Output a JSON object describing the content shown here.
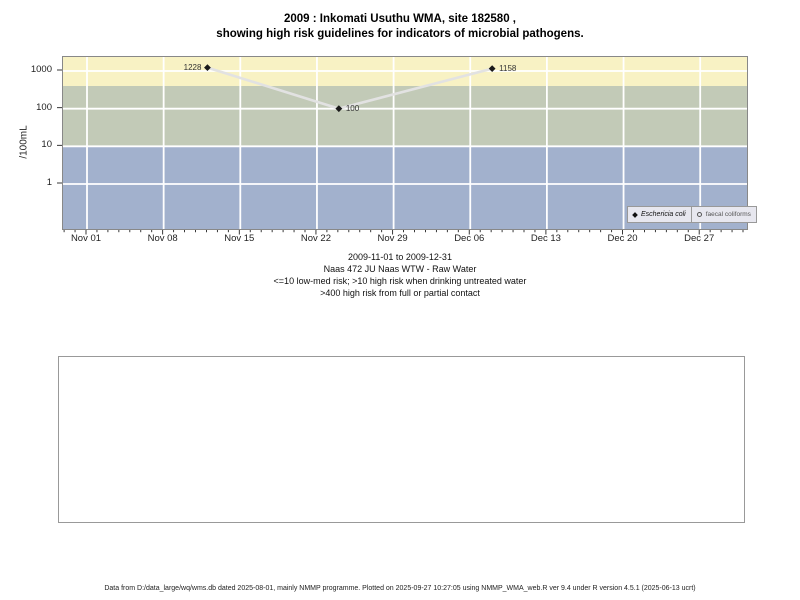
{
  "title": {
    "line1": "2009 : Inkomati Usuthu WMA, site 182580 ,",
    "line2": "showing high risk guidelines for indicators of microbial pathogens."
  },
  "chart_data": {
    "type": "line",
    "title": "2009 : Inkomati Usuthu WMA, site 182580 , showing high risk guidelines for indicators of microbial pathogens.",
    "ylabel": "/100mL",
    "y_scale": "log",
    "y_ticks": [
      1,
      10,
      100,
      1000
    ],
    "ylim": [
      0.06,
      2300
    ],
    "x_range": [
      "2009-11-01",
      "2009-12-31"
    ],
    "x_tick_labels": [
      "Nov 01",
      "Nov 08",
      "Nov 15",
      "Nov 22",
      "Nov 29",
      "Dec 06",
      "Dec 13",
      "Dec 20",
      "Dec 27"
    ],
    "grid": true,
    "legend_position": "bottom-right",
    "series": [
      {
        "name": "Eschericia coli",
        "marker": "filled-diamond",
        "points": [
          {
            "date": "2009-11-12",
            "day_from_nov01": 11,
            "value": 1228,
            "label": "1228"
          },
          {
            "date": "2009-11-24",
            "day_from_nov01": 23,
            "value": 100,
            "label": "100"
          },
          {
            "date": "2009-12-08",
            "day_from_nov01": 37,
            "value": 1158,
            "label": "1158"
          }
        ]
      },
      {
        "name": "faecal coliforms",
        "marker": "open-circle",
        "points": []
      }
    ],
    "risk_bands": [
      {
        "label": ">400 high risk from full or partial contact",
        "from": 400,
        "to": 2300,
        "color": "#f8f2c4"
      },
      {
        "label": ">10 high risk when drinking untreated water",
        "from": 10,
        "to": 400,
        "color": "#c2cab7"
      },
      {
        "label": "<=10 low-med risk",
        "from": 0.06,
        "to": 10,
        "color": "#a2b1cd"
      }
    ],
    "colors": {
      "line": "#e2e2e2",
      "marker": "#1a1a1a",
      "gridline": "#ffffff",
      "plot_border": "#888888",
      "legend_bg": "#e7e7ef"
    }
  },
  "caption": {
    "lines": [
      "2009-11-01 to 2009-12-31",
      "Naas 472 JU Naas WTW - Raw Water",
      "<=10 low-med risk; >10 high risk when drinking untreated water",
      ">400 high risk from full or partial contact"
    ]
  },
  "footer": {
    "text": "Data from D:/data_large/wq/wms.db dated 2025-08-01, mainly NMMP programme. Plotted on 2025-09-27 10:27:05 using NMMP_WMA_web.R ver 9.4 under R version 4.5.1 (2025-06-13 ucrt)"
  }
}
